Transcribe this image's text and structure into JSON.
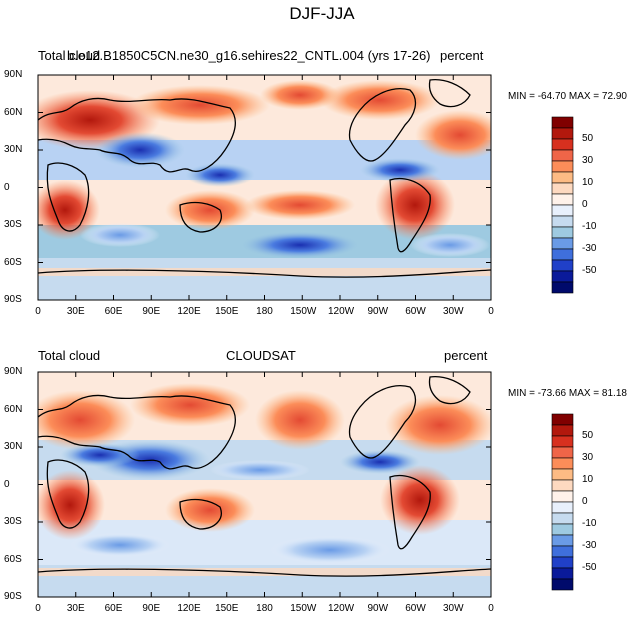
{
  "figure_title": "DJF-JJA",
  "panels": [
    {
      "left_title": "Total cloud",
      "center_title": "b.e12.B1850C5CN.ne30_g16.sehires22_CNTL.004 (yrs 17-26)",
      "right_title": "percent",
      "stats": "MIN = -64.70   MAX =  72.90"
    },
    {
      "left_title": "Total cloud",
      "center_title": "CLOUDSAT",
      "right_title": "percent",
      "stats": "MIN = -73.66   MAX =  81.18"
    }
  ],
  "lat_ticks": [
    "90N",
    "60N",
    "30N",
    "0",
    "30S",
    "60S",
    "90S"
  ],
  "lon_ticks": [
    "0",
    "30E",
    "60E",
    "90E",
    "120E",
    "150E",
    "180",
    "150W",
    "120W",
    "90W",
    "60W",
    "30W",
    "0"
  ],
  "colorbar": {
    "labels": [
      "50",
      "30",
      "10",
      "0",
      "-10",
      "-30",
      "-50"
    ],
    "colors": [
      "#800000",
      "#b2180d",
      "#d7301f",
      "#ef6548",
      "#fc8d59",
      "#fdbb84",
      "#fdd9c0",
      "#fff2ea",
      "#e8f0fc",
      "#c6dbef",
      "#9ecae1",
      "#6a9be6",
      "#3f6fdc",
      "#2040c8",
      "#0a1a9a",
      "#000a6b"
    ]
  }
}
